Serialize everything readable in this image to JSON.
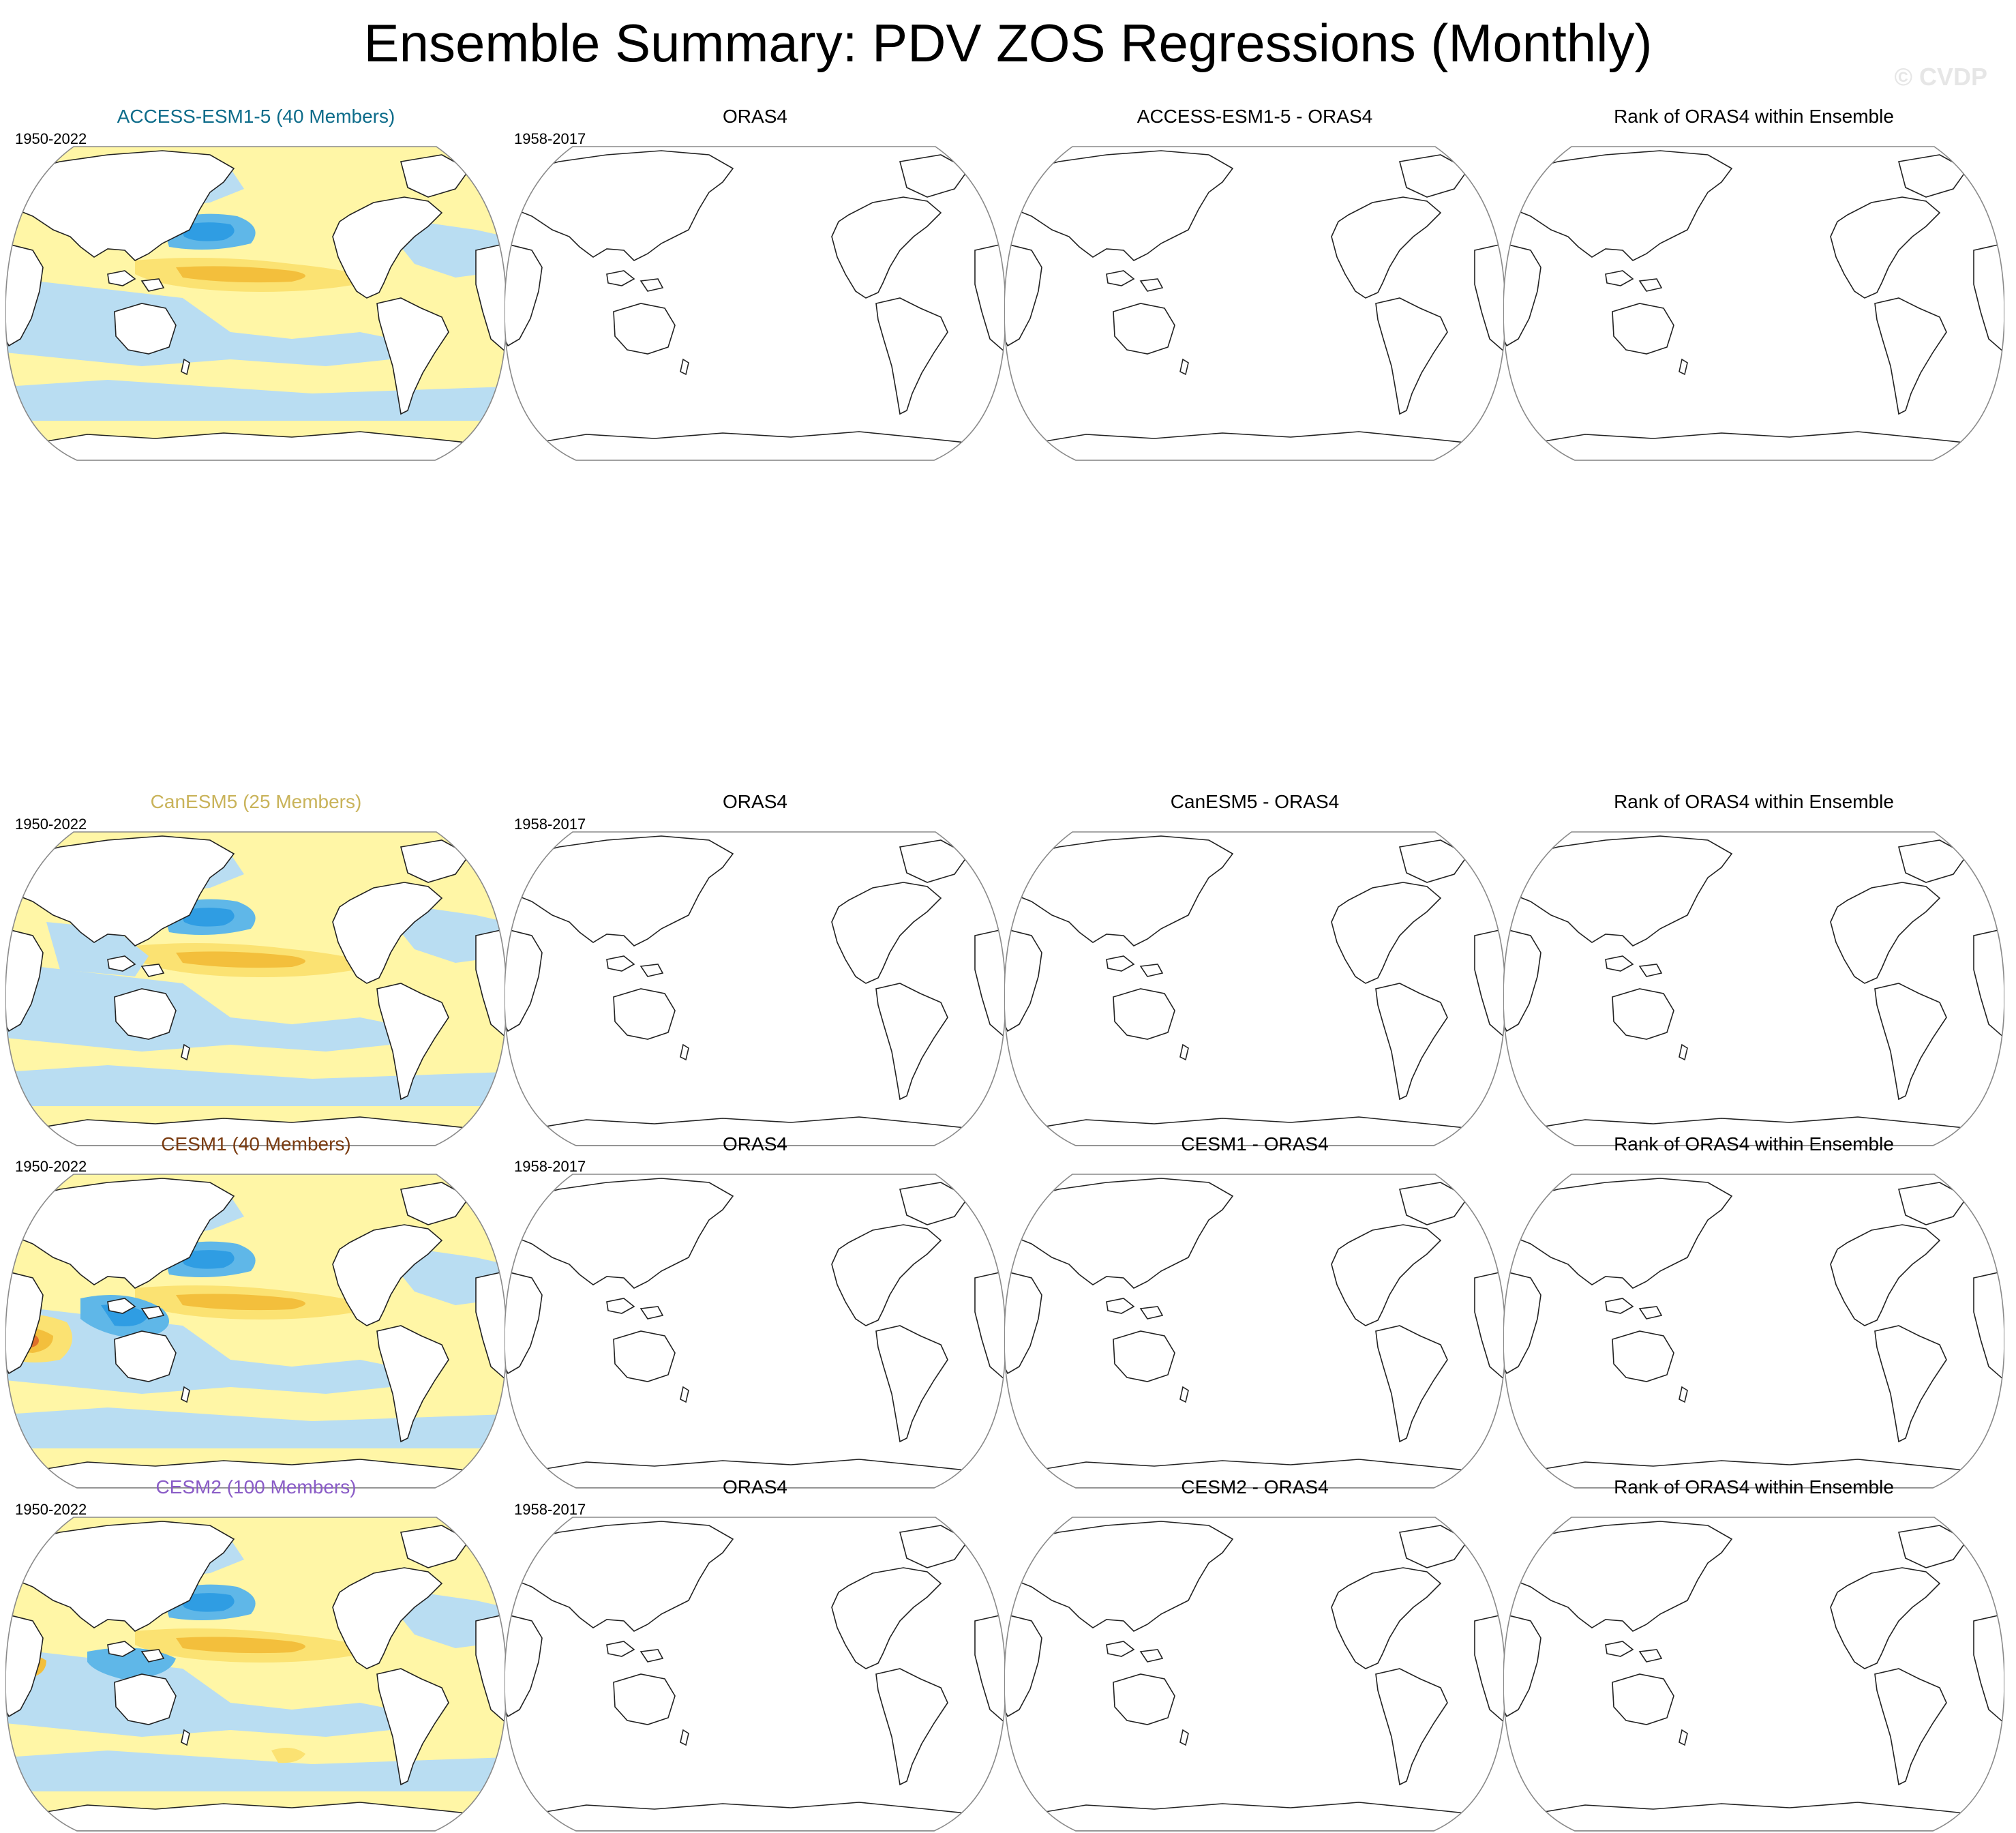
{
  "title": "Ensemble Summary: PDV ZOS Regressions (Monthly)",
  "watermark": "© CVDP",
  "colors": {
    "ocean_neg_light": "#b9ddf2",
    "ocean_neg": "#5fb7e8",
    "ocean_neg_strong": "#2f9de3",
    "ocean_pos_light": "#fff6a6",
    "ocean_pos": "#fbe272",
    "ocean_pos_strong": "#f3bf3c",
    "ocean_pos_max": "#e0702a",
    "land": "#ffffff",
    "coast": "#222222",
    "border": "#8a8a8a"
  },
  "rows": [
    {
      "model": {
        "title": "ACCESS-ESM1-5 (40 Members)",
        "title_color": "#0d6c8a",
        "years": "1950-2022",
        "pattern": 0
      },
      "obs": {
        "title": "ORAS4",
        "years": "1958-2017"
      },
      "diff": {
        "title": "ACCESS-ESM1-5 - ORAS4"
      },
      "rank": {
        "title": "Rank of ORAS4 within Ensemble"
      }
    },
    {
      "model": {
        "title": "CanESM5 (25 Members)",
        "title_color": "#c9b35a",
        "years": "1950-2022",
        "pattern": 1
      },
      "obs": {
        "title": "ORAS4",
        "years": "1958-2017"
      },
      "diff": {
        "title": "CanESM5 - ORAS4"
      },
      "rank": {
        "title": "Rank of ORAS4 within Ensemble"
      }
    },
    {
      "model": {
        "title": "CESM1 (40 Members)",
        "title_color": "#7a3b10",
        "years": "1950-2022",
        "pattern": 2
      },
      "obs": {
        "title": "ORAS4",
        "years": "1958-2017"
      },
      "diff": {
        "title": "CESM1 - ORAS4"
      },
      "rank": {
        "title": "Rank of ORAS4 within Ensemble"
      }
    },
    {
      "model": {
        "title": "CESM2 (100 Members)",
        "title_color": "#8a5cc7",
        "years": "1950-2022",
        "pattern": 3
      },
      "obs": {
        "title": "ORAS4",
        "years": "1958-2017"
      },
      "diff": {
        "title": "CESM2 - ORAS4"
      },
      "rank": {
        "title": "Rank of ORAS4 within Ensemble"
      }
    }
  ]
}
